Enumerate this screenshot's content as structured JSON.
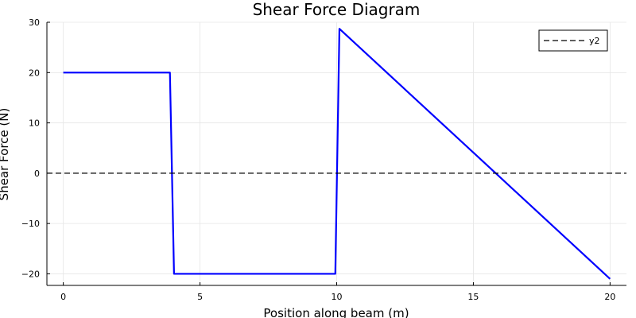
{
  "chart_data": {
    "type": "line",
    "title": "Shear Force Diagram",
    "xlabel": "Position along beam (m)",
    "ylabel": "Shear Force (N)",
    "xlim": [
      -0.6,
      20.6
    ],
    "ylim": [
      -22.3,
      30
    ],
    "x_ticks": [
      0,
      5,
      10,
      15,
      20
    ],
    "x_tick_labels": [
      "0",
      "5",
      "10",
      "15",
      "20"
    ],
    "y_ticks": [
      -20,
      -10,
      0,
      10,
      20,
      30
    ],
    "y_tick_labels": [
      "−20",
      "−10",
      "0",
      "10",
      "20",
      "30"
    ],
    "grid": true,
    "legend_position": "top-right",
    "series": [
      {
        "color": "#0000ff",
        "style": "solid",
        "points": [
          {
            "x": 0,
            "y": 20
          },
          {
            "x": 3.9,
            "y": 20
          },
          {
            "x": 4.05,
            "y": -20
          },
          {
            "x": 9.95,
            "y": -20
          },
          {
            "x": 10.1,
            "y": 28.7
          },
          {
            "x": 20,
            "y": -21
          }
        ]
      },
      {
        "name": "y2",
        "color": "#000000",
        "style": "dashed",
        "points": [
          {
            "x": -0.6,
            "y": 0
          },
          {
            "x": 20.6,
            "y": 0
          }
        ]
      }
    ]
  }
}
